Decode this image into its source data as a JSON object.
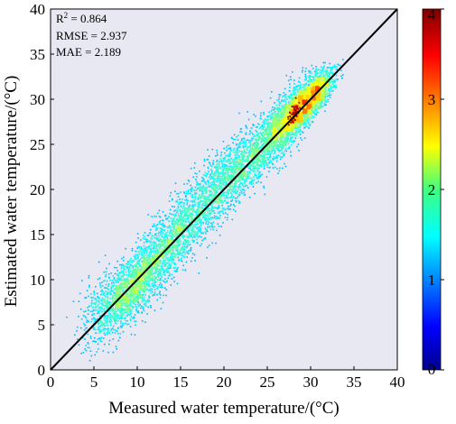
{
  "chart_data": {
    "type": "scatter",
    "title": "",
    "xlabel": "Measured water temperature/(°C)",
    "ylabel": "Estimated water temperature/(°C)",
    "xlim": [
      0,
      40
    ],
    "ylim": [
      0,
      40
    ],
    "xticks": [
      "0",
      "5",
      "10",
      "15",
      "20",
      "25",
      "30",
      "35",
      "40"
    ],
    "yticks": [
      "0",
      "5",
      "10",
      "15",
      "20",
      "25",
      "30",
      "35",
      "40"
    ],
    "plot_background": "#e8e8f2",
    "reference_line": {
      "from": [
        0,
        0
      ],
      "to": [
        40,
        40
      ],
      "color": "#000000"
    },
    "stats": {
      "r2_prefix": "R",
      "r2_sup": "2",
      "r2_value": " = 0.864",
      "rmse": "RMSE = 2.937",
      "mae": "MAE = 2.189"
    },
    "colorbar": {
      "colormap": "jet",
      "range": [
        0,
        4
      ],
      "ticks": [
        "0",
        "1",
        "2",
        "3",
        "4"
      ]
    },
    "density_clusters": [
      {
        "x": 8.5,
        "y": 8.5,
        "sx": 1.6,
        "sy": 2.4,
        "n": 1100
      },
      {
        "x": 11.5,
        "y": 11.5,
        "sx": 1.8,
        "sy": 2.6,
        "n": 1000
      },
      {
        "x": 15.0,
        "y": 15.5,
        "sx": 2.0,
        "sy": 2.8,
        "n": 800
      },
      {
        "x": 18.5,
        "y": 19.5,
        "sx": 2.0,
        "sy": 2.8,
        "n": 850
      },
      {
        "x": 22.0,
        "y": 22.5,
        "sx": 2.0,
        "sy": 2.6,
        "n": 800
      },
      {
        "x": 26.0,
        "y": 26.5,
        "sx": 1.8,
        "sy": 2.4,
        "n": 1000
      },
      {
        "x": 28.5,
        "y": 29.0,
        "sx": 1.5,
        "sy": 1.8,
        "n": 1500
      },
      {
        "x": 30.5,
        "y": 30.5,
        "sx": 1.1,
        "sy": 1.4,
        "n": 900
      },
      {
        "x": 5.5,
        "y": 7.0,
        "sx": 1.2,
        "sy": 2.6,
        "n": 250
      }
    ],
    "hotspot": {
      "x": 28.0,
      "y": 28.5,
      "value": 4
    }
  }
}
